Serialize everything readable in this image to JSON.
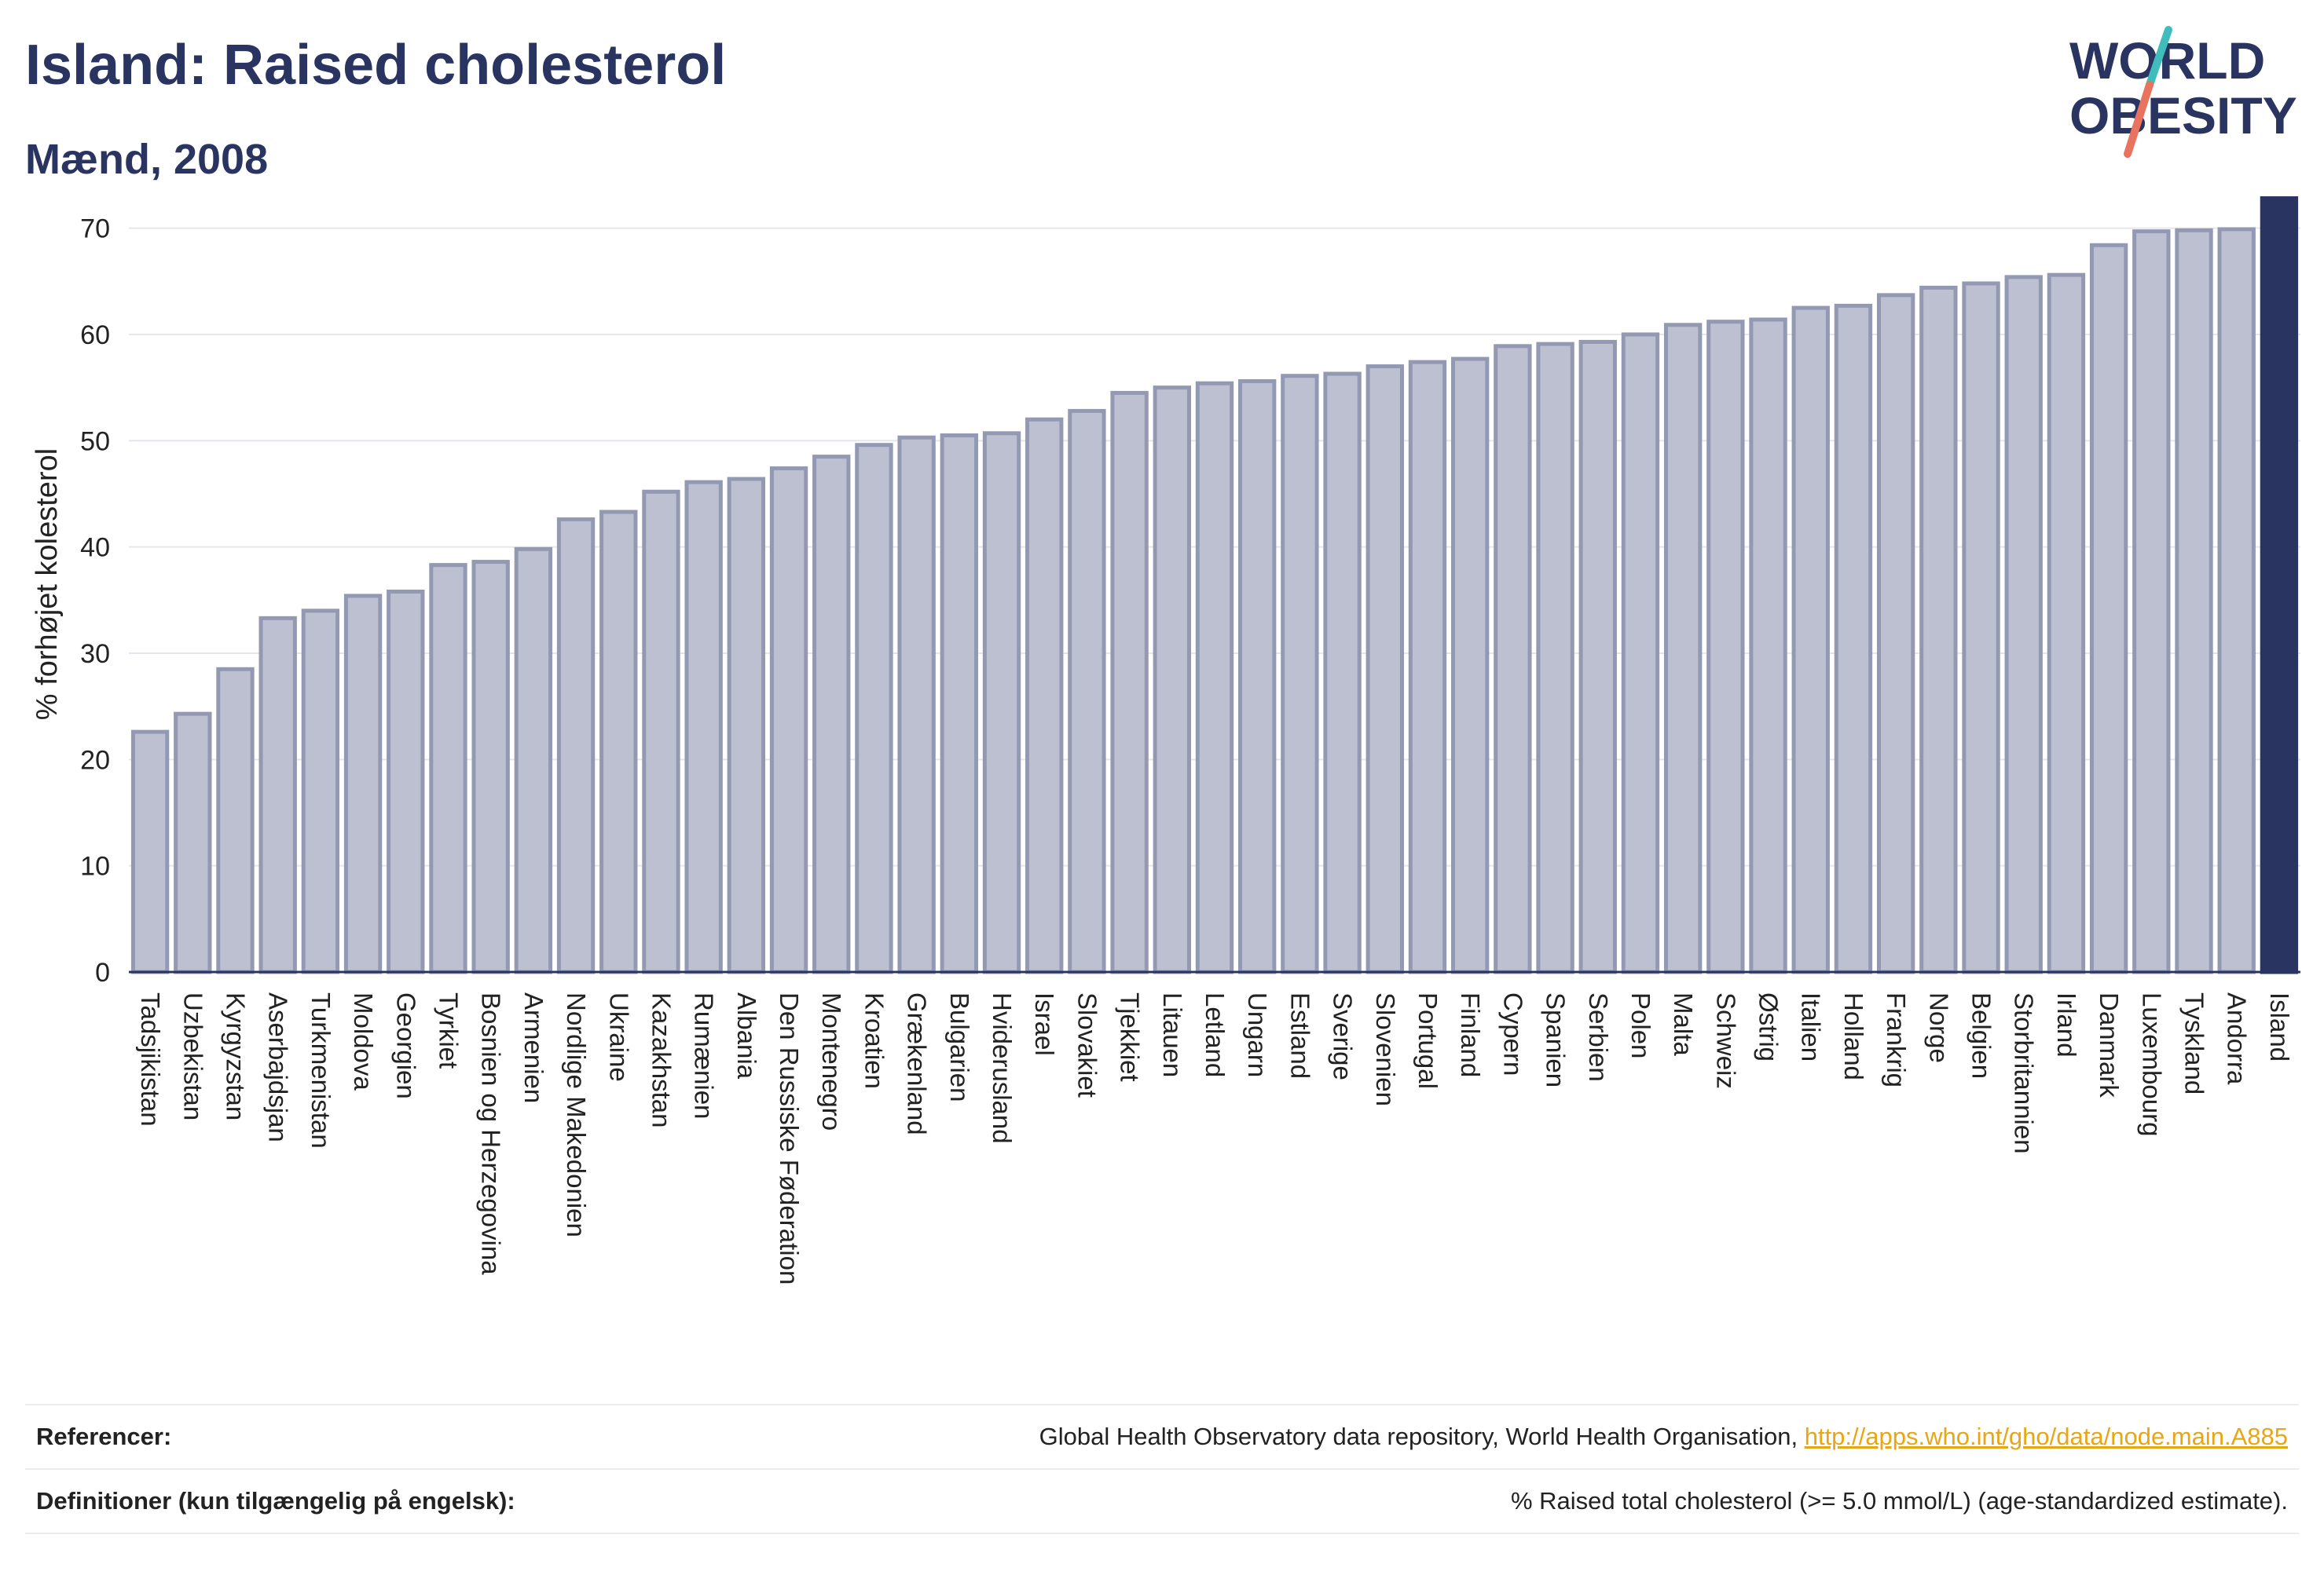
{
  "header": {
    "title": "Island: Raised cholesterol",
    "subtitle": "Mænd, 2008"
  },
  "logo": {
    "line1": "WORLD",
    "line2": "OBESITY",
    "colors": {
      "text": "#2a3461",
      "teal": "#3fbdbd",
      "coral": "#e8735f"
    }
  },
  "colors": {
    "bar": "#bcc0d0",
    "bar_outline": "#9399b2",
    "highlight": "#2a3461",
    "axis": "#2a3461",
    "grid": "#e6e6ec"
  },
  "chart_data": {
    "type": "bar",
    "ylabel": "% forhøjet kolesterol",
    "ylim": [
      0,
      73
    ],
    "yticks": [
      0,
      10,
      20,
      30,
      40,
      50,
      60,
      70
    ],
    "grid": true,
    "highlight": "Island",
    "categories": [
      "Tadsjikistan",
      "Uzbekistan",
      "Kyrgyzstan",
      "Aserbajdsjan",
      "Turkmenistan",
      "Moldova",
      "Georgien",
      "Tyrkiet",
      "Bosnien og Herzegovina",
      "Armenien",
      "Nordlige Makedonien",
      "Ukraine",
      "Kazakhstan",
      "Rumænien",
      "Albania",
      "Den Russiske Føderation",
      "Montenegro",
      "Kroatien",
      "Grækenland",
      "Bulgarien",
      "Hviderusland",
      "Israel",
      "Slovakiet",
      "Tjekkiet",
      "Litauen",
      "Letland",
      "Ungarn",
      "Estland",
      "Sverige",
      "Slovenien",
      "Portugal",
      "Finland",
      "Cypern",
      "Spanien",
      "Serbien",
      "Polen",
      "Malta",
      "Schweiz",
      "Østrig",
      "Italien",
      "Holland",
      "Frankrig",
      "Norge",
      "Belgien",
      "Storbritannien",
      "Irland",
      "Danmark",
      "Luxembourg",
      "Tyskland",
      "Andorra",
      "Island"
    ],
    "values": [
      22.6,
      24.3,
      28.5,
      33.3,
      34.0,
      35.4,
      35.8,
      38.3,
      38.6,
      39.8,
      42.6,
      43.3,
      45.2,
      46.1,
      46.4,
      47.4,
      48.5,
      49.6,
      50.3,
      50.5,
      50.7,
      52.0,
      52.8,
      54.5,
      55.0,
      55.4,
      55.6,
      56.1,
      56.3,
      57.0,
      57.4,
      57.7,
      58.9,
      59.1,
      59.3,
      60.0,
      60.9,
      61.2,
      61.4,
      62.5,
      62.7,
      63.7,
      64.4,
      64.8,
      65.4,
      65.6,
      68.4,
      69.7,
      69.8,
      69.9,
      72.9
    ]
  },
  "references": {
    "ref_label": "Referencer:",
    "ref_text": "Global Health Observatory data repository, World Health Organisation,",
    "ref_link": "http://apps.who.int/gho/data/node.main.A885",
    "def_label": "Definitioner (kun tilgængelig på engelsk):",
    "def_text": "% Raised total cholesterol (>= 5.0 mmol/L) (age-standardized estimate)."
  }
}
